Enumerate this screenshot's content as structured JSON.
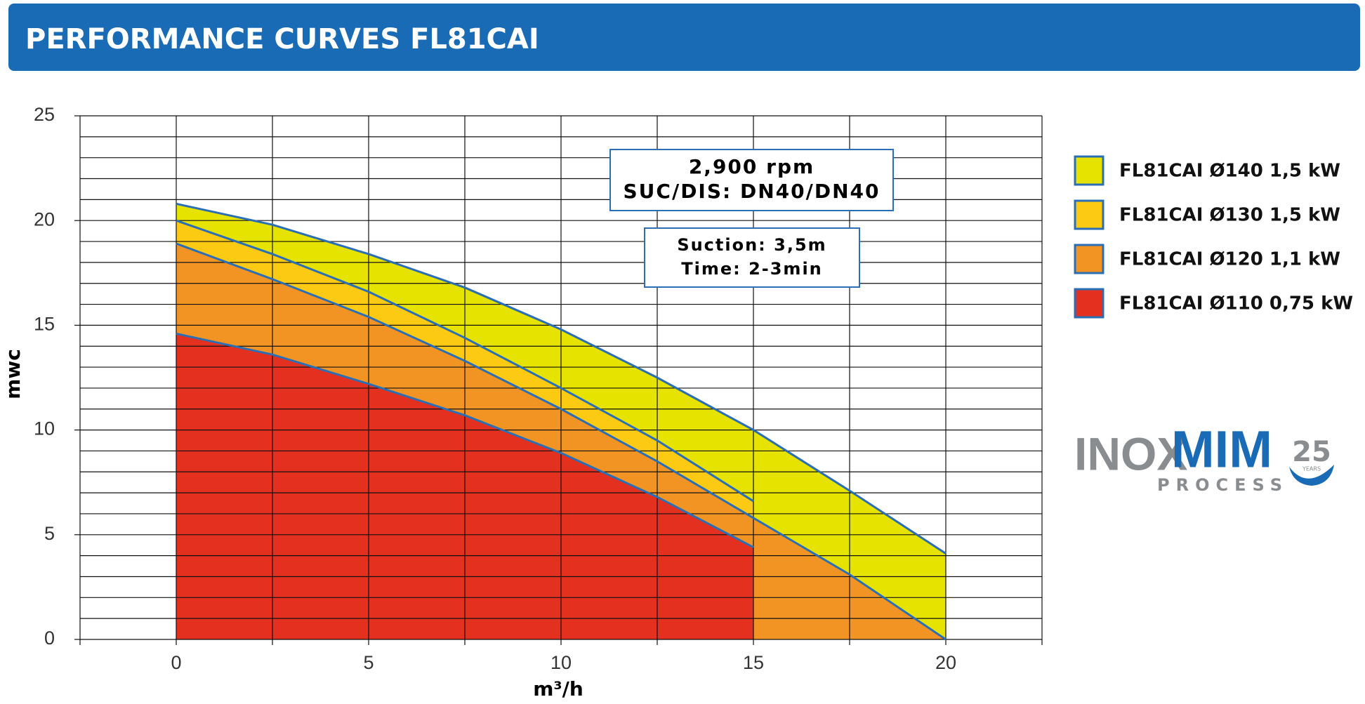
{
  "header": {
    "title": "PERFORMANCE CURVES FL81CAI"
  },
  "chart_data": {
    "type": "area",
    "xlabel": "m³/h",
    "ylabel": "mwc",
    "xlim": [
      -2.5,
      22.5
    ],
    "ylim": [
      0,
      25
    ],
    "xticks": [
      0,
      5,
      10,
      15,
      20
    ],
    "yticks": [
      0,
      5,
      10,
      15,
      20,
      25
    ],
    "grid": true,
    "x_grid_step": 2.5,
    "y_grid_step": 1,
    "line_color": "#2a6fb5",
    "series": [
      {
        "name": "FL81CAI Ø140 1,5 kW",
        "color": "#e7e300",
        "x": [
          0,
          2.5,
          5,
          7.5,
          10,
          12.5,
          15,
          17.5,
          20
        ],
        "values": [
          20.8,
          19.8,
          18.4,
          16.8,
          14.8,
          12.5,
          10.0,
          7.1,
          4.1
        ]
      },
      {
        "name": "FL81CAI Ø130 1,5 kW",
        "color": "#fcc913",
        "x": [
          0,
          2.5,
          5,
          7.5,
          10,
          12.5,
          15
        ],
        "values": [
          20.0,
          18.4,
          16.6,
          14.4,
          12.0,
          9.5,
          6.6
        ]
      },
      {
        "name": "FL81CAI Ø120 1,1 kW",
        "color": "#f29424",
        "x": [
          0,
          2.5,
          5,
          7.5,
          10,
          12.5,
          15,
          17.5,
          20
        ],
        "values": [
          18.9,
          17.2,
          15.4,
          13.3,
          11.0,
          8.5,
          5.8,
          3.1,
          0
        ]
      },
      {
        "name": "FL81CAI Ø110 0,75 kW",
        "color": "#e4301f",
        "x": [
          0,
          2.5,
          5,
          7.5,
          10,
          12.5,
          15
        ],
        "values": [
          14.6,
          13.6,
          12.2,
          10.7,
          8.9,
          6.8,
          4.4
        ]
      }
    ],
    "annotations": [
      [
        "2,900 rpm",
        "SUC/DIS: DN40/DN40"
      ],
      [
        "Suction: 3,5m",
        "Time: 2-3min"
      ]
    ]
  },
  "logo": {
    "inox": "INOX",
    "mim": "MIM",
    "process": "PROCESS",
    "years": "25",
    "years_label": "YEARS"
  }
}
